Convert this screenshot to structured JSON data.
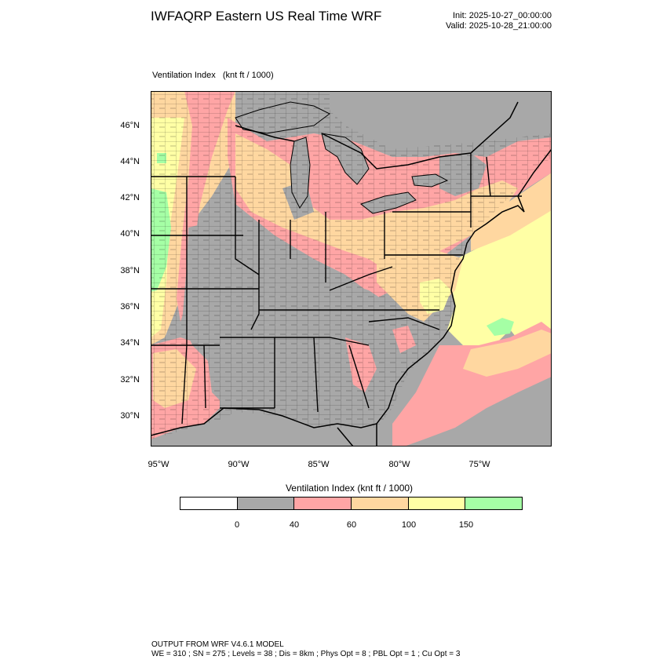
{
  "title": "IWFAQRP Eastern US Real Time WRF",
  "init": "Init: 2025-10-27_00:00:00",
  "valid": "Valid: 2025-10-28_21:00:00",
  "subtitle": "Ventilation Index   (knt ft / 1000)",
  "lat_labels": [
    "46°N",
    "44°N",
    "42°N",
    "40°N",
    "38°N",
    "36°N",
    "34°N",
    "32°N",
    "30°N"
  ],
  "lon_labels": [
    "95°W",
    "90°W",
    "85°W",
    "80°W",
    "75°W"
  ],
  "colorbar": {
    "title": "Ventilation Index  (knt ft / 1000)",
    "colors": [
      "#ffffff",
      "#a8a8a8",
      "#ffa5a5",
      "#ffd7a0",
      "#ffffa5",
      "#a5ffa5"
    ],
    "labels": [
      "0",
      "40",
      "60",
      "100",
      "150"
    ]
  },
  "footer": {
    "line1": "OUTPUT FROM WRF V4.6.1 MODEL",
    "line2": "WE = 310 ; SN = 275 ; Levels = 38 ; Dis = 8km ; Phys Opt = 8 ; PBL Opt = 1 ; Cu Opt = 3"
  }
}
